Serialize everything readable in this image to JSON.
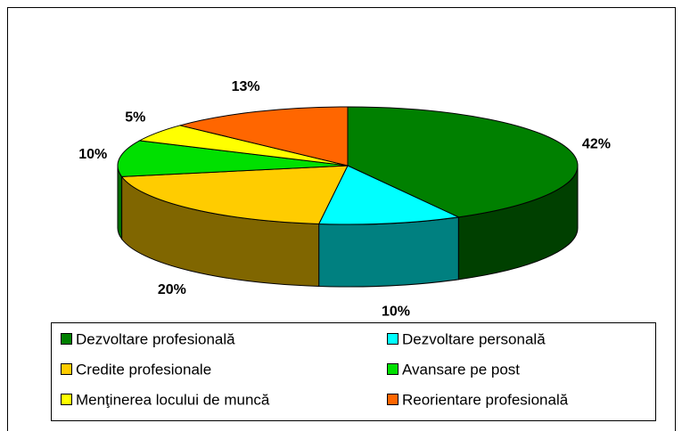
{
  "chart_data": {
    "type": "pie3d",
    "categories": [
      "Dezvoltare profesională",
      "Dezvoltare personală",
      "Credite profesionale",
      "Avansare pe post",
      "Menţinerea locului de muncă",
      "Reorientare profesională"
    ],
    "values": [
      42,
      10,
      20,
      10,
      5,
      13
    ],
    "value_labels": [
      "42%",
      "10%",
      "20%",
      "10%",
      "5%",
      "13%"
    ],
    "colors": [
      "#008000",
      "#00FFFF",
      "#FFCC00",
      "#00E000",
      "#FFFF00",
      "#FF6600"
    ],
    "side_colors": [
      "#004000",
      "#008080",
      "#806600",
      "#007000",
      "#808000",
      "#803300"
    ]
  }
}
